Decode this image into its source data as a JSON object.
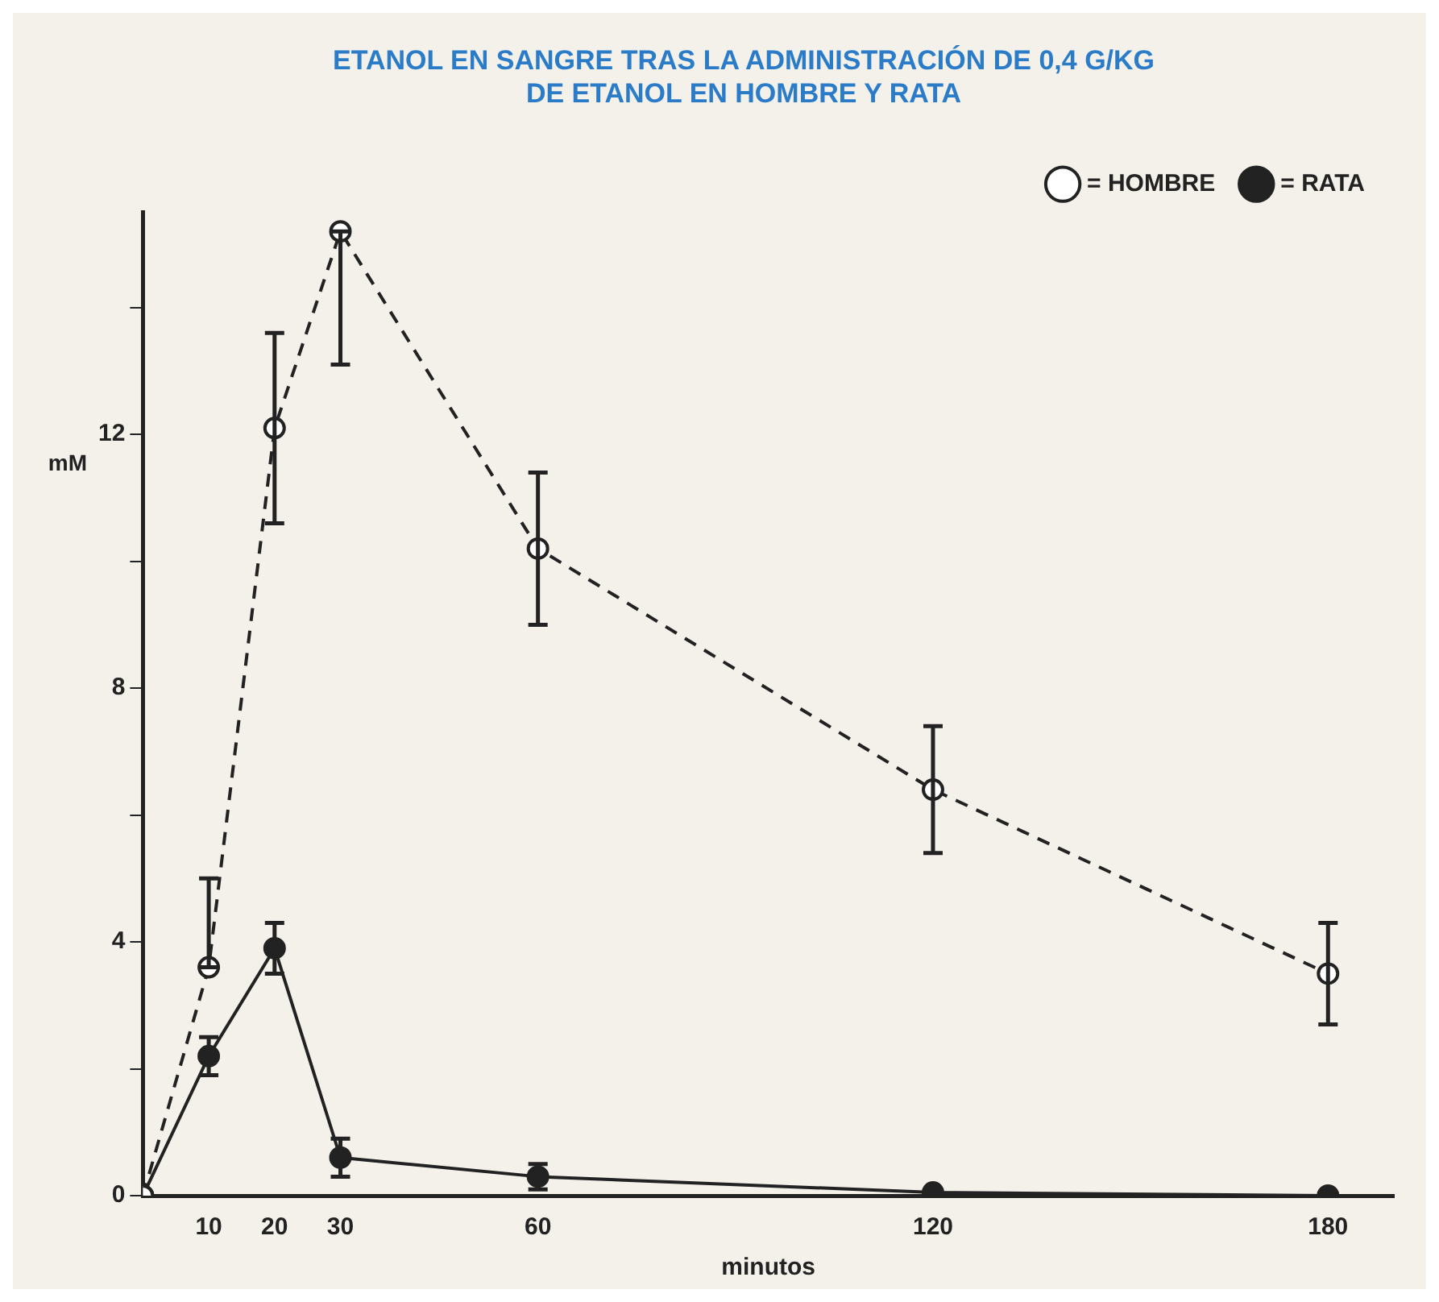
{
  "chart_data": {
    "type": "line",
    "title": "ETANOL EN SANGRE TRAS LA ADMINISTRACIÓN DE 0,4 G/KG\nDE ETANOL EN HOMBRE Y RATA",
    "xlabel": "minutos",
    "ylabel": "mM",
    "x": [
      0,
      10,
      20,
      30,
      60,
      120,
      180
    ],
    "series": [
      {
        "name": "= HOMBRE",
        "color": "#222222",
        "line_style": "dashed",
        "values": [
          0,
          3.6,
          12.1,
          15.2,
          10.2,
          6.4,
          3.5
        ],
        "errors": [
          null,
          [
            3.6,
            5.0
          ],
          1.5,
          [
            13.1,
            15.2
          ],
          1.2,
          1.0,
          0.8
        ]
      },
      {
        "name": "= RATA",
        "color": "#222222",
        "line_style": "solid",
        "values": [
          0,
          2.2,
          3.9,
          0.6,
          0.3,
          0.05,
          0
        ],
        "errors": [
          null,
          0.3,
          0.4,
          0.3,
          0.2,
          null,
          null
        ]
      }
    ],
    "xlim": [
      0,
      190
    ],
    "xticks": [
      10,
      20,
      30,
      60,
      120,
      180
    ],
    "ylim": [
      0,
      15.5
    ],
    "yticks": [
      0,
      {
        "value": 2,
        "label": null
      },
      4,
      {
        "value": 6,
        "label": null
      },
      8,
      {
        "value": 10,
        "label": null
      },
      12,
      {
        "value": 14,
        "label": null
      }
    ],
    "marker": "circle",
    "grid": false,
    "legend": "top right"
  }
}
